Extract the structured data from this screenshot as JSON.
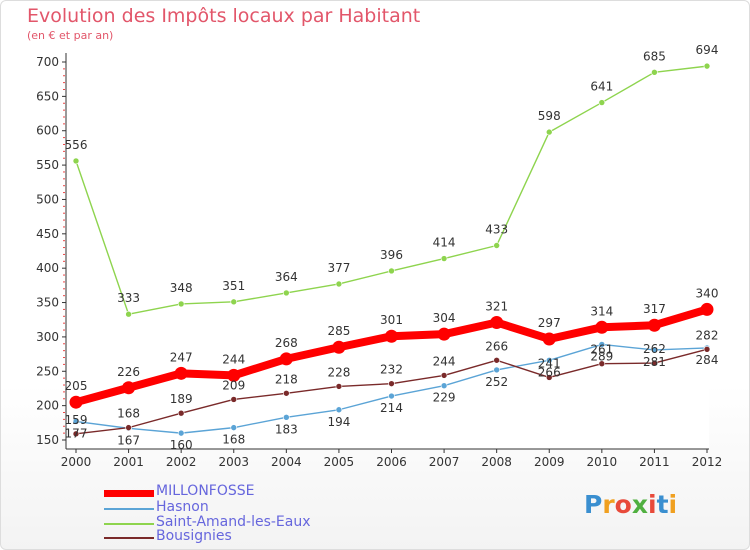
{
  "title": "Evolution des Impôts locaux par Habitant",
  "subtitle": "(en € et par an)",
  "logo": {
    "text": "Proxiti",
    "letters": [
      "P",
      "r",
      "o",
      "x",
      "i",
      "t",
      "i"
    ],
    "colors": [
      "#3a8fd0",
      "#f0a020",
      "#e84a3a",
      "#50b040",
      "#e84a3a",
      "#3a8fd0",
      "#f0a020"
    ]
  },
  "chart_data": {
    "type": "line",
    "x": [
      "2000",
      "2001",
      "2002",
      "2003",
      "2004",
      "2005",
      "2006",
      "2007",
      "2008",
      "2009",
      "2010",
      "2011",
      "2012"
    ],
    "ylim": [
      150,
      700
    ],
    "yticks": [
      "150",
      "200",
      "250",
      "300",
      "350",
      "400",
      "450",
      "500",
      "550",
      "600",
      "650",
      "700"
    ],
    "grid": false,
    "legend_position": "bottom-left",
    "series": [
      {
        "name": "MILLONFOSSE",
        "color": "#ff0000",
        "values": [
          205,
          226,
          247,
          244,
          268,
          285,
          301,
          304,
          321,
          297,
          314,
          317,
          340
        ],
        "labels": [
          "205",
          "226",
          "247",
          "244",
          "268",
          "285",
          "301",
          "304",
          "321",
          "297",
          "314",
          "317",
          "340"
        ]
      },
      {
        "name": "Hasnon",
        "color": "#5ba4d6",
        "values": [
          177,
          167,
          160,
          168,
          183,
          194,
          214,
          229,
          252,
          266,
          289,
          281,
          284
        ],
        "labels": [
          "177",
          "167",
          "160",
          "168",
          "183",
          "194",
          "214",
          "229",
          "252",
          "266",
          "289",
          "281",
          "284"
        ]
      },
      {
        "name": "Saint-Amand-les-Eaux",
        "color": "#8ed44e",
        "values": [
          556,
          333,
          348,
          351,
          364,
          377,
          396,
          414,
          433,
          598,
          641,
          685,
          694
        ],
        "labels": [
          "556",
          "333",
          "348",
          "351",
          "364",
          "377",
          "396",
          "414",
          "433",
          "598",
          "641",
          "685",
          "694"
        ]
      },
      {
        "name": "Bousignies",
        "color": "#7a2a2a",
        "values": [
          159,
          168,
          189,
          209,
          218,
          228,
          232,
          244,
          266,
          241,
          261,
          262,
          282
        ],
        "labels": [
          "159",
          "168",
          "189",
          "209",
          "218",
          "228",
          "232",
          "244",
          "266",
          "241",
          "261",
          "262",
          "282"
        ]
      }
    ]
  }
}
